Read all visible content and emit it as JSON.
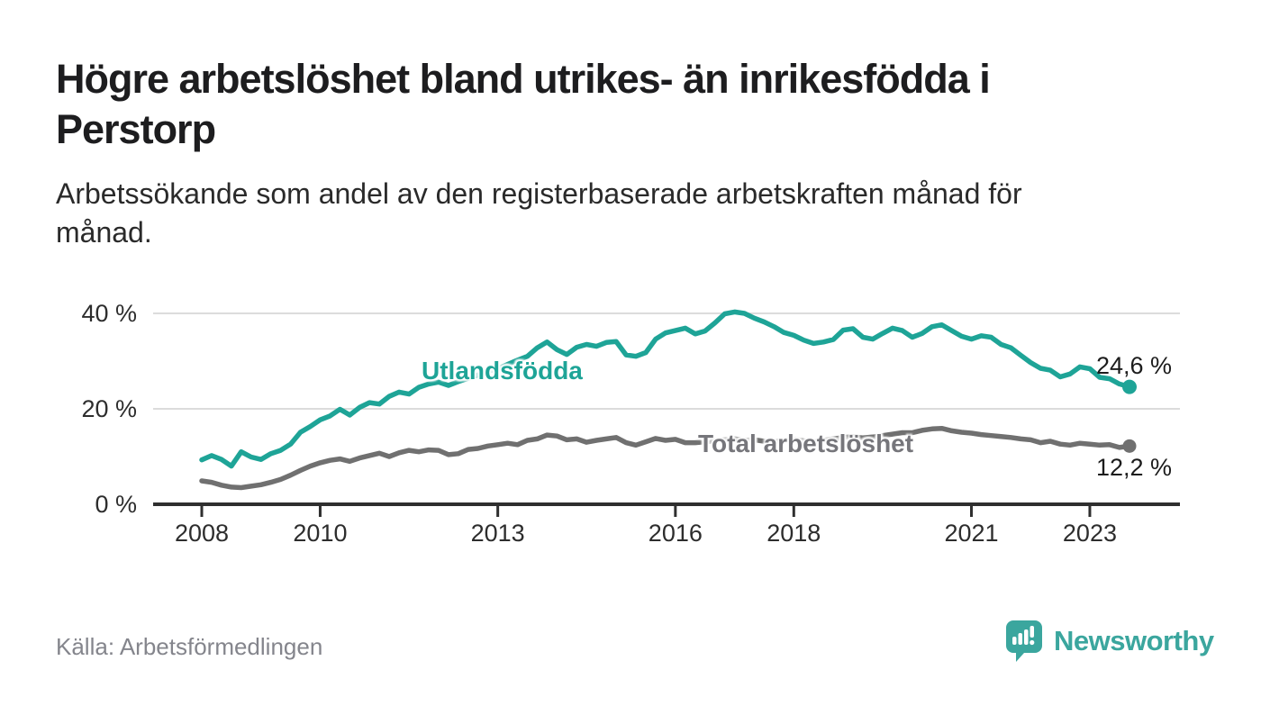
{
  "header": {
    "title_line1": "Högre arbetslöshet bland utrikes- än inrikesfödda i",
    "title_line2": "Perstorp",
    "subtitle_line1": "Arbetssökande som andel av den registerbaserade arbetskraften månad för",
    "subtitle_line2": "månad."
  },
  "footer": {
    "source": "Källa: Arbetsförmedlingen",
    "logo_text": "Newsworthy",
    "logo_icon": "speech-bubble-bar-chart-icon"
  },
  "colors": {
    "foreign_born_line": "#1EA497",
    "total_line": "#707070",
    "total_label_text": "#76767b",
    "logo_teal": "#3BA69E",
    "axis": "#2f2f2f",
    "gridline": "#dcdcdc",
    "value_label": "#1c1c1c",
    "source_text": "#84858c"
  },
  "chart_data": {
    "type": "line",
    "title": "Högre arbetslöshet bland utrikes- än inrikesfödda i Perstorp",
    "subtitle": "Arbetssökande som andel av den registerbaserade arbetskraften månad för månad.",
    "unit": "%",
    "grid": "horizontal",
    "x_ticks": [
      2008,
      2010,
      2013,
      2016,
      2018,
      2021,
      2023
    ],
    "y_ticks": [
      {
        "label": "0 %",
        "value": 0
      },
      {
        "label": "20 %",
        "value": 20
      },
      {
        "label": "40 %",
        "value": 40
      }
    ],
    "ylim": [
      0,
      42
    ],
    "x_start": 2008.0,
    "x_step": 0.1666667,
    "x_end": 2023.67,
    "series": [
      {
        "name": "Utlandsfödda",
        "color": "#1EA497",
        "end_label": "24,6 %",
        "end_value": 24.6,
        "values": [
          9.3,
          10.2,
          9.4,
          8.0,
          11.0,
          9.9,
          9.4,
          10.6,
          11.3,
          12.6,
          15.1,
          16.3,
          17.7,
          18.5,
          19.9,
          18.7,
          20.3,
          21.3,
          21.0,
          22.6,
          23.5,
          23.1,
          24.5,
          25.2,
          25.6,
          24.9,
          25.7,
          26.4,
          27.1,
          27.9,
          28.4,
          29.3,
          30.2,
          31.0,
          32.8,
          34.0,
          32.4,
          31.4,
          32.9,
          33.5,
          33.1,
          33.9,
          34.1,
          31.3,
          31.0,
          31.8,
          34.6,
          35.9,
          36.4,
          36.9,
          35.7,
          36.3,
          38.0,
          39.9,
          40.3,
          40.0,
          39.0,
          38.2,
          37.2,
          36.0,
          35.4,
          34.4,
          33.7,
          34.0,
          34.5,
          36.5,
          36.8,
          35.0,
          34.6,
          35.8,
          36.9,
          36.4,
          35.0,
          35.8,
          37.2,
          37.6,
          36.4,
          35.2,
          34.6,
          35.3,
          35.0,
          33.5,
          32.8,
          31.2,
          29.7,
          28.5,
          28.1,
          26.7,
          27.3,
          28.8,
          28.4,
          26.6,
          26.3,
          25.2,
          24.6
        ]
      },
      {
        "name": "Total arbetslöshet",
        "color": "#707070",
        "end_label": "12,2 %",
        "end_value": 12.2,
        "values": [
          4.9,
          4.6,
          4.0,
          3.6,
          3.5,
          3.8,
          4.1,
          4.6,
          5.2,
          6.1,
          7.1,
          8.0,
          8.7,
          9.2,
          9.5,
          9.0,
          9.7,
          10.2,
          10.7,
          10.0,
          10.8,
          11.3,
          11.0,
          11.4,
          11.3,
          10.4,
          10.6,
          11.5,
          11.7,
          12.2,
          12.5,
          12.8,
          12.5,
          13.4,
          13.7,
          14.5,
          14.3,
          13.5,
          13.7,
          13.0,
          13.4,
          13.7,
          14.0,
          12.9,
          12.4,
          13.1,
          13.8,
          13.4,
          13.6,
          12.9,
          12.9,
          13.1,
          13.3,
          13.5,
          13.7,
          13.4,
          13.5,
          13.2,
          13.1,
          13.4,
          13.6,
          13.3,
          13.1,
          13.4,
          13.7,
          14.0,
          14.2,
          13.9,
          14.1,
          14.4,
          14.7,
          15.0,
          15.0,
          15.5,
          15.8,
          15.9,
          15.4,
          15.1,
          14.9,
          14.6,
          14.4,
          14.2,
          14.0,
          13.7,
          13.5,
          12.9,
          13.2,
          12.6,
          12.4,
          12.8,
          12.6,
          12.4,
          12.5,
          11.9,
          12.2
        ]
      }
    ]
  }
}
